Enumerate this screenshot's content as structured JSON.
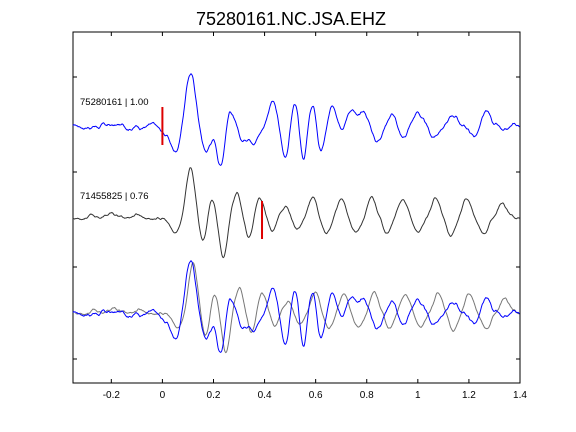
{
  "chart_data": {
    "type": "line",
    "title": "75280161.NC.JSA.EHZ",
    "xlabel": "",
    "ylabel": "",
    "xlim": [
      -0.35,
      1.4
    ],
    "x_ticks": [
      -0.2,
      0,
      0.2,
      0.4,
      0.6,
      0.8,
      1,
      1.2,
      1.4
    ],
    "x_tick_labels": [
      "-0.2",
      "0",
      "0.2",
      "0.4",
      "0.6",
      "0.8",
      "1",
      "1.2",
      "1.4"
    ],
    "y_ticks_shown": true,
    "grid": false,
    "colors": {
      "template": "#0000ff",
      "match": "#333333",
      "overlay_match": "#777777",
      "pick": "#dd0000",
      "axes": "#000000"
    },
    "panels": [
      {
        "label": "75280161 | 1.00",
        "color": "#0000ff",
        "pick_time": 0.0,
        "events": [
          {
            "t": 0.0,
            "a": -0.12,
            "w": 0.016
          },
          {
            "t": 0.05,
            "a": -0.55,
            "w": 0.02
          },
          {
            "t": 0.11,
            "a": 1.15,
            "w": 0.02
          },
          {
            "t": 0.17,
            "a": -0.55,
            "w": 0.018
          },
          {
            "t": 0.23,
            "a": -0.95,
            "w": 0.016
          },
          {
            "t": 0.26,
            "a": 0.45,
            "w": 0.02
          },
          {
            "t": 0.31,
            "a": -0.35,
            "w": 0.018
          },
          {
            "t": 0.36,
            "a": -0.25,
            "w": 0.02
          },
          {
            "t": 0.43,
            "a": 0.55,
            "w": 0.016
          },
          {
            "t": 0.48,
            "a": -0.7,
            "w": 0.014
          },
          {
            "t": 0.52,
            "a": 0.55,
            "w": 0.014
          },
          {
            "t": 0.55,
            "a": -0.8,
            "w": 0.013
          },
          {
            "t": 0.59,
            "a": 0.45,
            "w": 0.014
          },
          {
            "t": 0.62,
            "a": -0.6,
            "w": 0.014
          },
          {
            "t": 0.67,
            "a": 0.4,
            "w": 0.016
          },
          {
            "t": 0.74,
            "a": 0.4,
            "w": 0.016
          },
          {
            "t": 0.79,
            "a": 0.28,
            "w": 0.014
          },
          {
            "t": 0.84,
            "a": -0.32,
            "w": 0.014
          },
          {
            "t": 0.9,
            "a": 0.32,
            "w": 0.014
          },
          {
            "t": 0.94,
            "a": -0.3,
            "w": 0.014
          },
          {
            "t": 1.0,
            "a": 0.3,
            "w": 0.016
          },
          {
            "t": 1.06,
            "a": -0.25,
            "w": 0.016
          },
          {
            "t": 1.14,
            "a": 0.25,
            "w": 0.016
          },
          {
            "t": 1.22,
            "a": -0.22,
            "w": 0.016
          },
          {
            "t": 1.27,
            "a": 0.25,
            "w": 0.016
          },
          {
            "t": 1.34,
            "a": -0.18,
            "w": 0.016
          }
        ]
      },
      {
        "label": "71455825 | 0.76",
        "color": "#333333",
        "pick_time": 0.39,
        "events": [
          {
            "t": -0.28,
            "a": 0.06,
            "w": 0.02
          },
          {
            "t": -0.2,
            "a": 0.07,
            "w": 0.02
          },
          {
            "t": -0.1,
            "a": 0.08,
            "w": 0.02
          },
          {
            "t": 0.05,
            "a": -0.35,
            "w": 0.02
          },
          {
            "t": 0.11,
            "a": 1.1,
            "w": 0.018
          },
          {
            "t": 0.16,
            "a": -0.55,
            "w": 0.018
          },
          {
            "t": 0.19,
            "a": 0.5,
            "w": 0.016
          },
          {
            "t": 0.24,
            "a": -0.9,
            "w": 0.016
          },
          {
            "t": 0.29,
            "a": 0.55,
            "w": 0.02
          },
          {
            "t": 0.34,
            "a": -0.45,
            "w": 0.016
          },
          {
            "t": 0.38,
            "a": 0.45,
            "w": 0.016
          },
          {
            "t": 0.43,
            "a": -0.3,
            "w": 0.016
          },
          {
            "t": 0.48,
            "a": 0.25,
            "w": 0.016
          },
          {
            "t": 0.53,
            "a": -0.25,
            "w": 0.016
          },
          {
            "t": 0.59,
            "a": 0.5,
            "w": 0.016
          },
          {
            "t": 0.64,
            "a": -0.35,
            "w": 0.016
          },
          {
            "t": 0.7,
            "a": 0.4,
            "w": 0.016
          },
          {
            "t": 0.76,
            "a": -0.3,
            "w": 0.016
          },
          {
            "t": 0.82,
            "a": 0.4,
            "w": 0.016
          },
          {
            "t": 0.88,
            "a": -0.3,
            "w": 0.016
          },
          {
            "t": 0.94,
            "a": 0.38,
            "w": 0.016
          },
          {
            "t": 1.0,
            "a": -0.3,
            "w": 0.016
          },
          {
            "t": 1.07,
            "a": 0.45,
            "w": 0.016
          },
          {
            "t": 1.13,
            "a": -0.35,
            "w": 0.016
          },
          {
            "t": 1.19,
            "a": 0.4,
            "w": 0.016
          },
          {
            "t": 1.26,
            "a": -0.35,
            "w": 0.016
          },
          {
            "t": 1.33,
            "a": 0.35,
            "w": 0.016
          }
        ]
      },
      {
        "label": "",
        "overlay": true,
        "colors": [
          "#777777",
          "#0000ff"
        ]
      }
    ]
  }
}
